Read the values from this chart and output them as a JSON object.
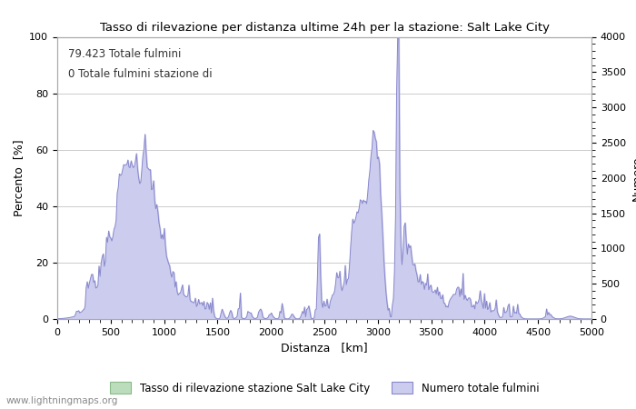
{
  "title": "Tasso di rilevazione per distanza ultime 24h per la stazione: Salt Lake City",
  "xlabel": "Distanza   [km]",
  "ylabel_left": "Percento  [%]",
  "ylabel_right": "Numero",
  "annotation_line1": "79.423 Totale fulmini",
  "annotation_line2": "0 Totale fulmini stazione di",
  "watermark": "www.lightningmaps.org",
  "legend_green": "Tasso di rilevazione stazione Salt Lake City",
  "legend_blue": "Numero totale fulmini",
  "xlim": [
    0,
    5000
  ],
  "ylim_left": [
    0,
    100
  ],
  "ylim_right": [
    0,
    4000
  ],
  "xticks": [
    0,
    500,
    1000,
    1500,
    2000,
    2500,
    3000,
    3500,
    4000,
    4500,
    5000
  ],
  "yticks_left": [
    0,
    20,
    40,
    60,
    80,
    100
  ],
  "yticks_right": [
    0,
    500,
    1000,
    1500,
    2000,
    2500,
    3000,
    3500,
    4000
  ],
  "line_color": "#8888cc",
  "fill_color": "#ccccee",
  "green_fill": "#bbddbb",
  "green_line": "#88bb88",
  "bg_color": "#ffffff",
  "grid_color": "#cccccc",
  "title_fontsize": 9.5,
  "axis_fontsize": 9,
  "tick_fontsize": 8,
  "annot_fontsize": 8.5,
  "watermark_fontsize": 7.5,
  "legend_fontsize": 8.5
}
